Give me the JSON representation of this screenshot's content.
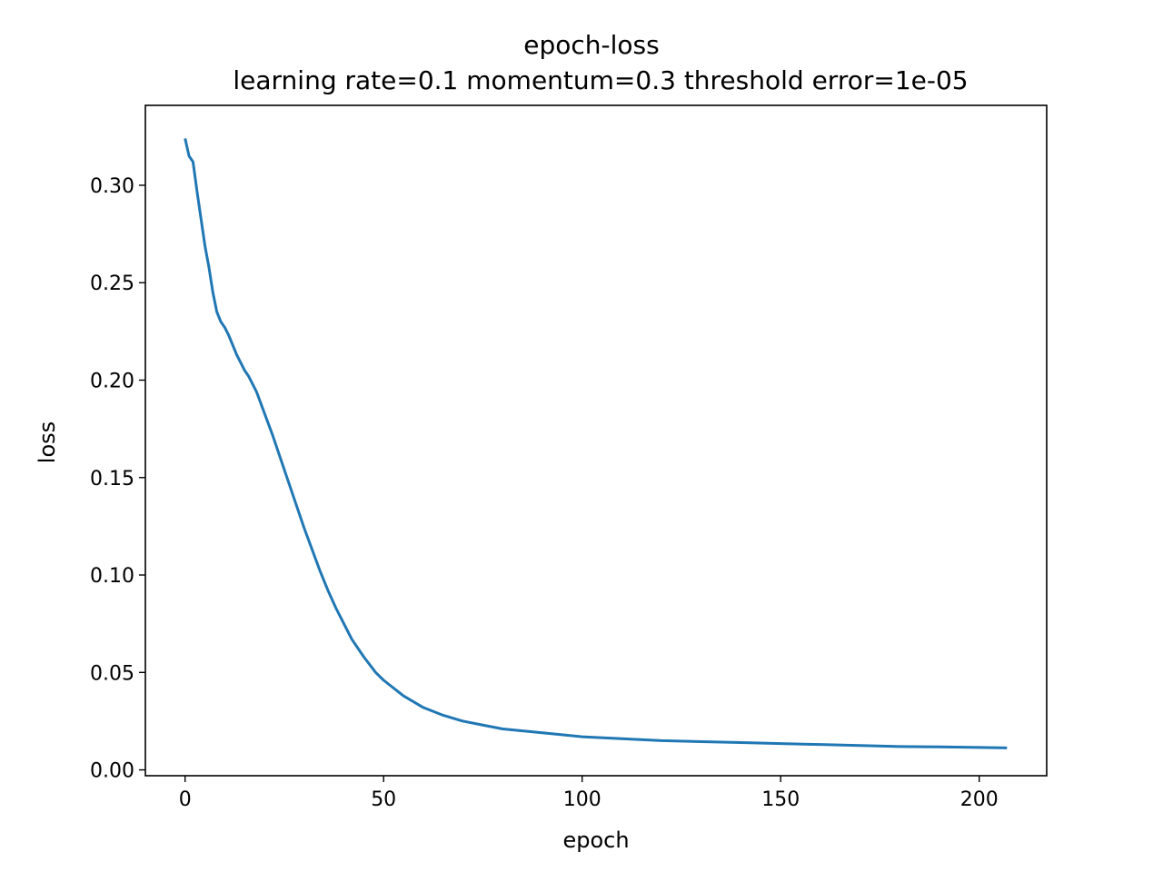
{
  "chart_data": {
    "type": "line",
    "title": "epoch-loss",
    "subtitle": "learning rate=0.1 momentum=0.3 threshold error=1e-05",
    "xlabel": "epoch",
    "ylabel": "loss",
    "xlim": [
      -10,
      217
    ],
    "ylim": [
      -0.003,
      0.341
    ],
    "x_ticks": [
      0,
      50,
      100,
      150,
      200
    ],
    "x_tick_labels": [
      "0",
      "50",
      "100",
      "150",
      "200"
    ],
    "y_ticks": [
      0.0,
      0.05,
      0.1,
      0.15,
      0.2,
      0.25,
      0.3
    ],
    "y_tick_labels": [
      "0.00",
      "0.05",
      "0.10",
      "0.15",
      "0.20",
      "0.25",
      "0.30"
    ],
    "grid": false,
    "legend": "none",
    "series_color": "#1f77b4",
    "series": [
      {
        "x": [
          0,
          1,
          2,
          3,
          4,
          5,
          6,
          7,
          8,
          9,
          10,
          11,
          12,
          13,
          14,
          15,
          16,
          17,
          18,
          20,
          22,
          24,
          26,
          28,
          30,
          32,
          34,
          36,
          38,
          40,
          42,
          45,
          48,
          50,
          55,
          60,
          65,
          70,
          75,
          80,
          90,
          100,
          110,
          120,
          130,
          140,
          150,
          160,
          170,
          180,
          190,
          200,
          207
        ],
        "y": [
          0.324,
          0.315,
          0.312,
          0.297,
          0.283,
          0.269,
          0.258,
          0.245,
          0.235,
          0.23,
          0.227,
          0.223,
          0.218,
          0.213,
          0.209,
          0.205,
          0.202,
          0.198,
          0.194,
          0.183,
          0.172,
          0.16,
          0.148,
          0.136,
          0.124,
          0.113,
          0.102,
          0.092,
          0.083,
          0.075,
          0.067,
          0.058,
          0.05,
          0.046,
          0.038,
          0.032,
          0.028,
          0.025,
          0.023,
          0.021,
          0.019,
          0.017,
          0.016,
          0.015,
          0.0145,
          0.014,
          0.0135,
          0.013,
          0.0125,
          0.012,
          0.0118,
          0.0115,
          0.0113
        ]
      }
    ]
  }
}
